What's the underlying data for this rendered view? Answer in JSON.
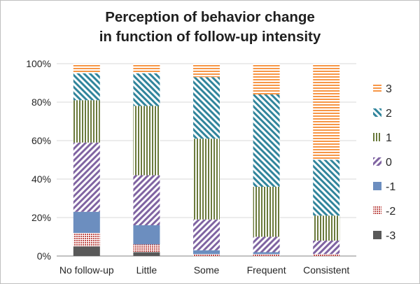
{
  "chart_data": {
    "type": "bar",
    "stacked": true,
    "normalized": true,
    "title_line1": "Perception of behavior change",
    "title_line2": "in function of follow-up intensity",
    "xlabel": "",
    "ylabel": "",
    "ylim": [
      0,
      100
    ],
    "y_ticks": [
      "0%",
      "20%",
      "40%",
      "60%",
      "80%",
      "100%"
    ],
    "grid": true,
    "legend_position": "right",
    "categories": [
      "No follow-up",
      "Little",
      "Some",
      "Frequent",
      "Consistent"
    ],
    "series": [
      {
        "name": "-3",
        "color": "#595959",
        "pattern": "solid-dark",
        "values": [
          5,
          2,
          0,
          0,
          0
        ]
      },
      {
        "name": "-2",
        "color": "#c0504d",
        "pattern": "dots",
        "values": [
          7,
          4,
          1,
          1,
          1
        ]
      },
      {
        "name": "-1",
        "color": "#6c8ebf",
        "pattern": "solid",
        "values": [
          11,
          10,
          2,
          1,
          0
        ]
      },
      {
        "name": "0",
        "color": "#8064a2",
        "pattern": "diagonal-up",
        "values": [
          36,
          26,
          16,
          8,
          7
        ]
      },
      {
        "name": "1",
        "color": "#6b7a3c",
        "pattern": "vertical",
        "values": [
          22,
          36,
          42,
          26,
          13
        ]
      },
      {
        "name": "2",
        "color": "#31859c",
        "pattern": "diagonal-down",
        "values": [
          14,
          17,
          32,
          48,
          29
        ]
      },
      {
        "name": "3",
        "color": "#f79646",
        "pattern": "horizontal",
        "values": [
          5,
          5,
          7,
          16,
          50
        ]
      }
    ]
  }
}
